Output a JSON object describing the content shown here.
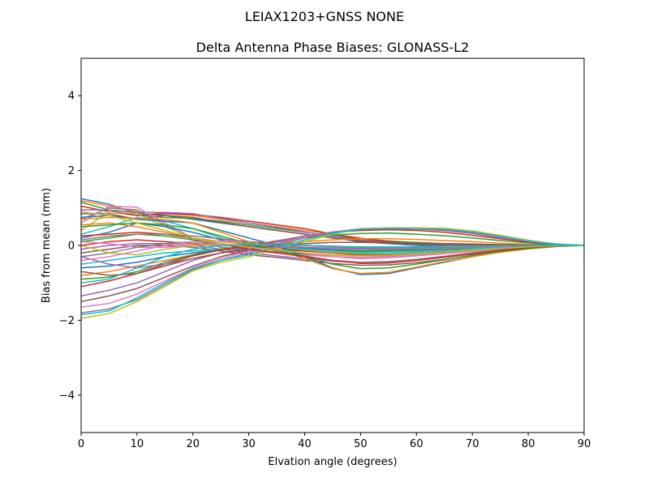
{
  "chart_data": {
    "type": "line",
    "suptitle": "LEIAX1203+GNSS  NONE",
    "title": "Delta Antenna Phase Biases: GLONASS-L2",
    "xlabel": "Elvation angle (degrees)",
    "ylabel": "Bias from mean (mm)",
    "xlim": [
      0,
      90
    ],
    "ylim": [
      -5,
      5
    ],
    "xticks": [
      0,
      10,
      20,
      30,
      40,
      50,
      60,
      70,
      80,
      90
    ],
    "xtick_labels": [
      "0",
      "10",
      "20",
      "30",
      "40",
      "50",
      "60",
      "70",
      "80",
      "90"
    ],
    "yticks": [
      -4,
      -2,
      0,
      2,
      4
    ],
    "ytick_labels": [
      "−4",
      "−2",
      "0",
      "2",
      "4"
    ],
    "grid": false,
    "legend": "none",
    "x": [
      0,
      5,
      10,
      15,
      20,
      25,
      30,
      35,
      40,
      45,
      50,
      55,
      60,
      65,
      70,
      75,
      80,
      85,
      90
    ],
    "colors": [
      "#1f77b4",
      "#ff7f0e",
      "#2ca02c",
      "#d62728",
      "#9467bd",
      "#8c564b",
      "#e377c2",
      "#7f7f7f",
      "#bcbd22",
      "#17becf"
    ],
    "series": [
      {
        "values": [
          1.25,
          1.1,
          0.85,
          0.8,
          0.7,
          0.6,
          0.5,
          0.4,
          0.3,
          0.2,
          0.1,
          0.05,
          0.0,
          -0.02,
          -0.03,
          -0.03,
          -0.02,
          -0.01,
          0.0
        ]
      },
      {
        "values": [
          1.2,
          1.05,
          0.9,
          0.85,
          0.8,
          0.7,
          0.6,
          0.5,
          0.4,
          0.3,
          0.2,
          0.1,
          0.05,
          0.02,
          0.0,
          -0.01,
          -0.01,
          0.0,
          0.0
        ]
      },
      {
        "values": [
          1.15,
          0.95,
          0.8,
          0.75,
          0.72,
          0.65,
          0.55,
          0.45,
          0.35,
          0.25,
          0.18,
          0.12,
          0.08,
          0.05,
          0.03,
          0.02,
          0.01,
          0.0,
          0.0
        ]
      },
      {
        "values": [
          1.05,
          0.9,
          0.8,
          0.85,
          0.83,
          0.75,
          0.65,
          0.55,
          0.45,
          0.3,
          0.18,
          0.1,
          0.05,
          0.02,
          0.0,
          -0.01,
          -0.01,
          0.0,
          0.0
        ]
      },
      {
        "values": [
          0.95,
          0.95,
          0.88,
          0.88,
          0.85,
          0.72,
          0.6,
          0.48,
          0.36,
          0.24,
          0.14,
          0.07,
          0.03,
          0.01,
          0.0,
          0.0,
          0.0,
          0.0,
          0.0
        ]
      },
      {
        "values": [
          0.85,
          0.85,
          0.7,
          0.8,
          0.75,
          0.62,
          0.5,
          0.4,
          0.3,
          0.2,
          0.12,
          0.07,
          0.04,
          0.02,
          0.01,
          0.0,
          0.0,
          0.0,
          0.0
        ]
      },
      {
        "values": [
          0.6,
          1.05,
          1.02,
          0.6,
          0.2,
          -0.05,
          -0.15,
          -0.2,
          -0.25,
          -0.3,
          -0.32,
          -0.3,
          -0.25,
          -0.2,
          -0.15,
          -0.1,
          -0.05,
          -0.02,
          0.0
        ]
      },
      {
        "values": [
          0.7,
          1.0,
          0.95,
          0.55,
          0.15,
          -0.05,
          -0.12,
          -0.18,
          -0.22,
          -0.26,
          -0.28,
          -0.27,
          -0.23,
          -0.18,
          -0.13,
          -0.08,
          -0.04,
          -0.01,
          0.0
        ]
      },
      {
        "values": [
          0.4,
          0.9,
          0.85,
          0.5,
          0.2,
          0.05,
          -0.05,
          -0.1,
          -0.15,
          -0.2,
          -0.22,
          -0.2,
          -0.17,
          -0.13,
          -0.09,
          -0.06,
          -0.03,
          -0.01,
          0.0
        ]
      },
      {
        "values": [
          0.3,
          0.5,
          0.75,
          0.65,
          0.45,
          0.2,
          0.0,
          -0.1,
          -0.12,
          -0.15,
          -0.17,
          -0.16,
          -0.14,
          -0.11,
          -0.08,
          -0.05,
          -0.03,
          -0.01,
          0.0
        ]
      },
      {
        "values": [
          0.2,
          0.35,
          0.6,
          0.5,
          0.35,
          0.15,
          0.0,
          -0.05,
          -0.08,
          -0.12,
          -0.14,
          -0.13,
          -0.12,
          -0.1,
          -0.07,
          -0.04,
          -0.02,
          -0.01,
          0.0
        ]
      },
      {
        "values": [
          0.55,
          0.6,
          0.5,
          0.35,
          0.2,
          0.1,
          0.05,
          0.0,
          -0.05,
          -0.08,
          -0.1,
          -0.1,
          -0.08,
          -0.06,
          -0.04,
          -0.02,
          -0.01,
          0.0,
          0.0
        ]
      },
      {
        "values": [
          0.1,
          0.2,
          0.3,
          0.25,
          0.15,
          0.05,
          -0.05,
          -0.1,
          -0.12,
          -0.14,
          -0.15,
          -0.14,
          -0.12,
          -0.1,
          -0.07,
          -0.04,
          -0.02,
          -0.01,
          0.0
        ]
      },
      {
        "values": [
          0.0,
          0.1,
          0.15,
          0.1,
          0.05,
          0.0,
          -0.05,
          -0.1,
          -0.15,
          -0.2,
          -0.25,
          -0.25,
          -0.22,
          -0.18,
          -0.13,
          -0.08,
          -0.04,
          -0.01,
          0.0
        ]
      },
      {
        "values": [
          -0.1,
          0.0,
          0.05,
          0.05,
          0.0,
          -0.1,
          -0.2,
          -0.28,
          -0.35,
          -0.42,
          -0.46,
          -0.45,
          -0.4,
          -0.32,
          -0.23,
          -0.14,
          -0.07,
          -0.02,
          0.0
        ]
      },
      {
        "values": [
          -0.2,
          -0.1,
          0.0,
          0.0,
          -0.05,
          -0.15,
          -0.25,
          -0.32,
          -0.4,
          -0.48,
          -0.53,
          -0.52,
          -0.46,
          -0.37,
          -0.27,
          -0.17,
          -0.08,
          -0.02,
          0.0
        ]
      },
      {
        "values": [
          0.1,
          0.05,
          -0.05,
          -0.05,
          0.0,
          0.0,
          -0.05,
          -0.1,
          -0.2,
          -0.3,
          -0.35,
          -0.33,
          -0.28,
          -0.22,
          -0.16,
          -0.1,
          -0.05,
          -0.01,
          0.0
        ]
      },
      {
        "values": [
          -0.3,
          -0.2,
          -0.05,
          0.05,
          0.1,
          0.05,
          -0.05,
          -0.15,
          -0.28,
          -0.4,
          -0.45,
          -0.43,
          -0.37,
          -0.29,
          -0.2,
          -0.12,
          -0.06,
          -0.02,
          0.0
        ]
      },
      {
        "values": [
          0.0,
          -0.2,
          -0.25,
          -0.1,
          0.0,
          0.05,
          0.0,
          -0.05,
          -0.12,
          -0.18,
          -0.22,
          -0.21,
          -0.18,
          -0.14,
          -0.1,
          -0.06,
          -0.03,
          -0.01,
          0.0
        ]
      },
      {
        "values": [
          -0.5,
          -0.4,
          -0.3,
          -0.2,
          -0.15,
          -0.1,
          -0.05,
          -0.05,
          -0.1,
          -0.15,
          -0.2,
          -0.2,
          -0.18,
          -0.15,
          -0.11,
          -0.07,
          -0.04,
          -0.01,
          0.0
        ]
      },
      {
        "values": [
          -0.6,
          -0.55,
          -0.45,
          -0.3,
          -0.2,
          -0.12,
          -0.05,
          0.0,
          0.0,
          -0.02,
          -0.05,
          -0.06,
          -0.06,
          -0.05,
          -0.04,
          -0.03,
          -0.02,
          -0.01,
          0.0
        ]
      },
      {
        "values": [
          -0.8,
          -0.7,
          -0.55,
          -0.4,
          -0.25,
          -0.12,
          -0.02,
          0.05,
          0.1,
          0.15,
          0.18,
          0.18,
          0.16,
          0.13,
          0.1,
          0.06,
          0.03,
          0.01,
          0.0
        ]
      },
      {
        "values": [
          -0.9,
          -0.85,
          -0.7,
          -0.45,
          -0.25,
          -0.1,
          0.0,
          0.1,
          0.2,
          0.28,
          0.32,
          0.33,
          0.3,
          0.26,
          0.2,
          0.13,
          0.07,
          0.02,
          0.0
        ]
      },
      {
        "values": [
          -1.1,
          -0.95,
          -0.75,
          -0.5,
          -0.28,
          -0.12,
          0.0,
          0.12,
          0.25,
          0.35,
          0.4,
          0.42,
          0.4,
          0.35,
          0.27,
          0.18,
          0.09,
          0.03,
          0.0
        ]
      },
      {
        "values": [
          -1.35,
          -1.2,
          -1.0,
          -0.7,
          -0.4,
          -0.2,
          -0.05,
          0.1,
          0.25,
          0.36,
          0.43,
          0.45,
          0.44,
          0.4,
          0.32,
          0.21,
          0.11,
          0.03,
          0.0
        ]
      },
      {
        "values": [
          -1.5,
          -1.35,
          -1.15,
          -0.85,
          -0.55,
          -0.3,
          -0.12,
          0.05,
          0.2,
          0.33,
          0.42,
          0.45,
          0.44,
          0.42,
          0.35,
          0.24,
          0.12,
          0.04,
          0.0
        ]
      },
      {
        "values": [
          -1.65,
          -1.55,
          -1.3,
          -0.95,
          -0.6,
          -0.35,
          -0.15,
          0.05,
          0.22,
          0.35,
          0.44,
          0.46,
          0.45,
          0.44,
          0.37,
          0.25,
          0.13,
          0.04,
          0.0
        ]
      },
      {
        "values": [
          -1.8,
          -1.7,
          -1.45,
          -1.05,
          -0.65,
          -0.4,
          -0.2,
          0.02,
          0.2,
          0.35,
          0.45,
          0.46,
          0.46,
          0.45,
          0.38,
          0.26,
          0.13,
          0.04,
          0.0
        ]
      },
      {
        "values": [
          -1.95,
          -1.82,
          -1.5,
          -1.1,
          -0.68,
          -0.45,
          -0.3,
          -0.1,
          0.1,
          0.3,
          0.45,
          0.47,
          0.47,
          0.46,
          0.39,
          0.27,
          0.14,
          0.04,
          0.0
        ]
      },
      {
        "values": [
          -1.85,
          -1.75,
          -1.4,
          -1.0,
          -0.62,
          -0.4,
          -0.25,
          -0.05,
          0.15,
          0.32,
          0.44,
          0.46,
          0.45,
          0.43,
          0.36,
          0.24,
          0.12,
          0.04,
          0.0
        ]
      },
      {
        "values": [
          0.75,
          0.8,
          0.7,
          0.65,
          0.6,
          0.4,
          0.2,
          0.0,
          -0.3,
          -0.6,
          -0.78,
          -0.75,
          -0.6,
          -0.45,
          -0.3,
          -0.18,
          -0.09,
          -0.03,
          0.0
        ]
      },
      {
        "values": [
          0.7,
          0.75,
          0.72,
          0.7,
          0.6,
          0.35,
          0.1,
          -0.1,
          -0.35,
          -0.62,
          -0.75,
          -0.72,
          -0.58,
          -0.43,
          -0.3,
          -0.18,
          -0.09,
          -0.03,
          0.0
        ]
      },
      {
        "values": [
          0.5,
          0.55,
          0.6,
          0.55,
          0.45,
          0.25,
          0.05,
          -0.12,
          -0.3,
          -0.5,
          -0.62,
          -0.6,
          -0.5,
          -0.38,
          -0.26,
          -0.16,
          -0.08,
          -0.02,
          0.0
        ]
      },
      {
        "values": [
          0.25,
          0.3,
          0.35,
          0.3,
          0.2,
          0.05,
          -0.1,
          -0.2,
          -0.3,
          -0.4,
          -0.48,
          -0.47,
          -0.4,
          -0.31,
          -0.22,
          -0.13,
          -0.06,
          -0.02,
          0.0
        ]
      },
      {
        "values": [
          -0.3,
          -0.5,
          -0.6,
          -0.5,
          -0.35,
          -0.2,
          -0.1,
          -0.05,
          -0.05,
          -0.08,
          -0.1,
          -0.1,
          -0.09,
          -0.08,
          -0.06,
          -0.04,
          -0.02,
          -0.01,
          0.0
        ]
      },
      {
        "values": [
          -0.7,
          -0.8,
          -0.75,
          -0.55,
          -0.35,
          -0.2,
          -0.1,
          0.0,
          0.05,
          0.08,
          0.08,
          0.07,
          0.06,
          0.05,
          0.04,
          0.02,
          0.01,
          0.0,
          0.0
        ]
      },
      {
        "values": [
          -0.4,
          -0.3,
          -0.15,
          0.0,
          0.1,
          0.12,
          0.1,
          0.05,
          0.0,
          -0.05,
          -0.08,
          -0.08,
          -0.07,
          -0.06,
          -0.04,
          -0.03,
          -0.01,
          0.0,
          0.0
        ]
      },
      {
        "values": [
          0.15,
          0.25,
          0.3,
          0.3,
          0.25,
          0.18,
          0.1,
          0.05,
          0.0,
          -0.04,
          -0.07,
          -0.07,
          -0.06,
          -0.05,
          -0.04,
          -0.02,
          -0.01,
          0.0,
          0.0
        ]
      },
      {
        "values": [
          0.9,
          0.8,
          0.6,
          0.4,
          0.2,
          0.05,
          -0.05,
          -0.12,
          -0.2,
          -0.25,
          -0.28,
          -0.27,
          -0.23,
          -0.18,
          -0.13,
          -0.08,
          -0.04,
          -0.01,
          0.0
        ]
      },
      {
        "values": [
          -1.0,
          -0.9,
          -0.6,
          -0.3,
          -0.1,
          0.0,
          0.02,
          0.02,
          0.0,
          -0.02,
          -0.04,
          -0.04,
          -0.04,
          -0.03,
          -0.02,
          -0.02,
          -0.01,
          0.0,
          0.0
        ]
      }
    ]
  }
}
